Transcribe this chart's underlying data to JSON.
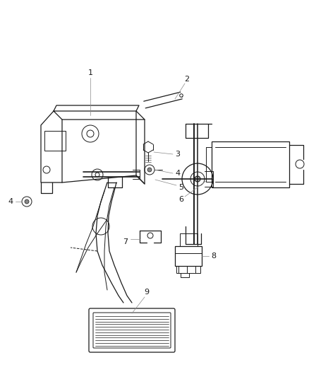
{
  "background_color": "#ffffff",
  "line_color": "#1a1a1a",
  "label_color": "#1a1a1a",
  "leader_color": "#888888",
  "figsize": [
    4.39,
    5.33
  ],
  "dpi": 100
}
